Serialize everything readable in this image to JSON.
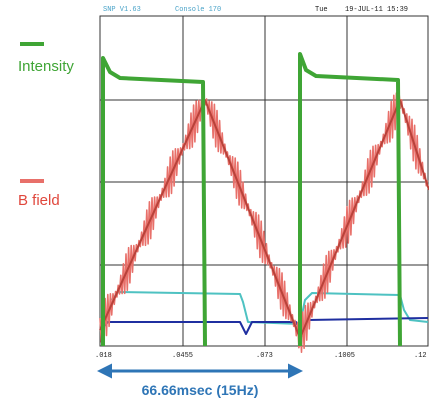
{
  "header": {
    "version": "SNP V1.63",
    "console": "Console 170",
    "day": "Tue",
    "datetime": "19-JUL-11 15:39"
  },
  "legend": [
    {
      "label": "Intensity"
    },
    {
      "label": "B field"
    }
  ],
  "x_axis": {
    "labels": [
      ".018",
      ".0455",
      ".073",
      ".1005",
      ".12"
    ]
  },
  "annotation": "66.66msec (15Hz)"
}
